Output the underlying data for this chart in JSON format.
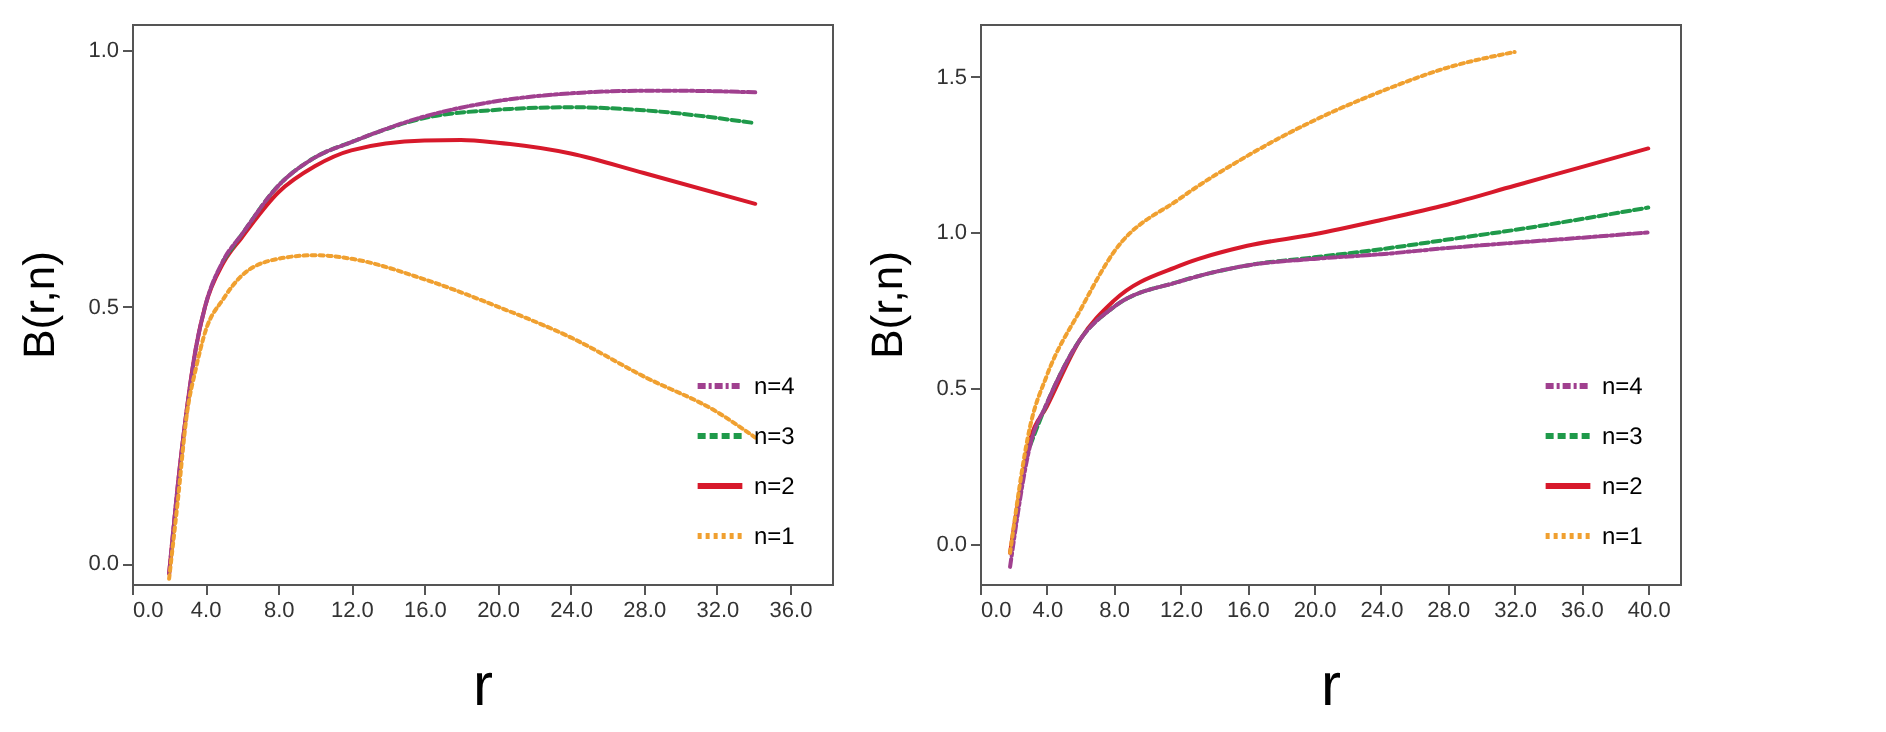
{
  "chart_data": [
    {
      "type": "line",
      "xlabel": "r",
      "ylabel": "B(r,n)",
      "xlim": [
        0,
        38.3
      ],
      "ylim": [
        -0.04,
        1.05
      ],
      "xticks": [
        {
          "value": 0,
          "label": "0.0"
        },
        {
          "value": 4,
          "label": "4.0"
        },
        {
          "value": 8,
          "label": "8.0"
        },
        {
          "value": 12,
          "label": "12.0"
        },
        {
          "value": 16,
          "label": "16.0"
        },
        {
          "value": 20,
          "label": "20.0"
        },
        {
          "value": 24,
          "label": "24.0"
        },
        {
          "value": 28,
          "label": "28.0"
        },
        {
          "value": 32,
          "label": "32.0"
        },
        {
          "value": 36,
          "label": "36.0"
        }
      ],
      "yticks": [
        {
          "value": 0,
          "label": "0.0"
        },
        {
          "value": 0.5,
          "label": "0.5"
        },
        {
          "value": 1,
          "label": "1.0"
        }
      ],
      "legend": "bottom right",
      "series": [
        {
          "name": "n=4",
          "color": "#a0408f",
          "line_style": "dashdot",
          "x": [
            2.03,
            2.5,
            3,
            3.5,
            4,
            5,
            6,
            8,
            10,
            12,
            16,
            20,
            24,
            28,
            30,
            34.1
          ],
          "values": [
            -0.02,
            0.15,
            0.3,
            0.42,
            0.5,
            0.59,
            0.64,
            0.735,
            0.79,
            0.82,
            0.87,
            0.9,
            0.915,
            0.92,
            0.92,
            0.917
          ]
        },
        {
          "name": "n=3",
          "color": "#1f9a4a",
          "line_style": "dashed",
          "x": [
            5,
            6,
            8,
            10,
            12,
            16,
            20,
            24,
            28,
            34.1
          ],
          "values": [
            0.59,
            0.64,
            0.735,
            0.79,
            0.82,
            0.867,
            0.883,
            0.888,
            0.882,
            0.857
          ]
        },
        {
          "name": "n=2",
          "color": "#d7192b",
          "line_style": "solid",
          "x": [
            2.03,
            2.5,
            3,
            3.5,
            4,
            5,
            6,
            8,
            10,
            12,
            16,
            18,
            20,
            24,
            28,
            34.1
          ],
          "values": [
            -0.02,
            0.15,
            0.3,
            0.42,
            0.5,
            0.585,
            0.634,
            0.722,
            0.773,
            0.804,
            0.823,
            0.824,
            0.819,
            0.798,
            0.76,
            0.7
          ]
        },
        {
          "name": "n=1",
          "color": "#f0a030",
          "line_style": "dotted",
          "x": [
            2.03,
            2.5,
            3,
            3.5,
            4,
            5,
            6,
            8,
            10,
            12,
            16,
            20,
            24,
            28,
            32,
            34.1
          ],
          "values": [
            -0.03,
            0.12,
            0.29,
            0.38,
            0.45,
            0.515,
            0.56,
            0.593,
            0.6,
            0.593,
            0.553,
            0.5,
            0.44,
            0.364,
            0.295,
            0.245
          ]
        }
      ]
    },
    {
      "type": "line",
      "xlabel": "r",
      "ylabel": "B(r,n)",
      "xlim": [
        0,
        41.9
      ],
      "ylim": [
        -0.13,
        1.67
      ],
      "xticks": [
        {
          "value": 0,
          "label": "0.0"
        },
        {
          "value": 4,
          "label": "4.0"
        },
        {
          "value": 8,
          "label": "8.0"
        },
        {
          "value": 12,
          "label": "12.0"
        },
        {
          "value": 16,
          "label": "16.0"
        },
        {
          "value": 20,
          "label": "20.0"
        },
        {
          "value": 24,
          "label": "24.0"
        },
        {
          "value": 28,
          "label": "28.0"
        },
        {
          "value": 32,
          "label": "32.0"
        },
        {
          "value": 36,
          "label": "36.0"
        },
        {
          "value": 40,
          "label": "40.0"
        }
      ],
      "yticks": [
        {
          "value": 0,
          "label": "0.0"
        },
        {
          "value": 0.5,
          "label": "0.5"
        },
        {
          "value": 1,
          "label": "1.0"
        },
        {
          "value": 1.5,
          "label": "1.5"
        }
      ],
      "legend": "bottom right",
      "series": [
        {
          "name": "n=4",
          "color": "#a0408f",
          "line_style": "dashdot",
          "x": [
            1.8,
            3,
            4,
            6,
            8,
            12,
            16,
            20,
            24,
            28,
            32,
            36,
            40
          ],
          "values": [
            -0.075,
            0.315,
            0.45,
            0.656,
            0.76,
            0.843,
            0.894,
            0.915,
            0.93,
            0.95,
            0.967,
            0.983,
            1.0
          ]
        },
        {
          "name": "n=3",
          "color": "#1f9a4a",
          "line_style": "dashed",
          "x": [
            3,
            4,
            6,
            8,
            12,
            16,
            20,
            24,
            28,
            32,
            36,
            40
          ],
          "values": [
            0.315,
            0.45,
            0.656,
            0.76,
            0.843,
            0.894,
            0.92,
            0.946,
            0.977,
            1.008,
            1.043,
            1.08
          ]
        },
        {
          "name": "n=2",
          "color": "#d7192b",
          "line_style": "solid",
          "x": [
            1.8,
            3,
            4,
            6,
            8,
            12,
            16,
            20,
            24,
            28,
            32,
            36,
            40
          ],
          "values": [
            -0.03,
            0.335,
            0.44,
            0.656,
            0.78,
            0.894,
            0.957,
            0.994,
            1.04,
            1.09,
            1.15,
            1.21,
            1.27
          ]
        },
        {
          "name": "n=1",
          "color": "#f0a030",
          "line_style": "dotted",
          "x": [
            1.8,
            3,
            4,
            6,
            8,
            12,
            16,
            20,
            24,
            28,
            32
          ],
          "values": [
            -0.03,
            0.377,
            0.54,
            0.75,
            0.936,
            1.11,
            1.246,
            1.36,
            1.453,
            1.53,
            1.58
          ]
        }
      ]
    }
  ]
}
